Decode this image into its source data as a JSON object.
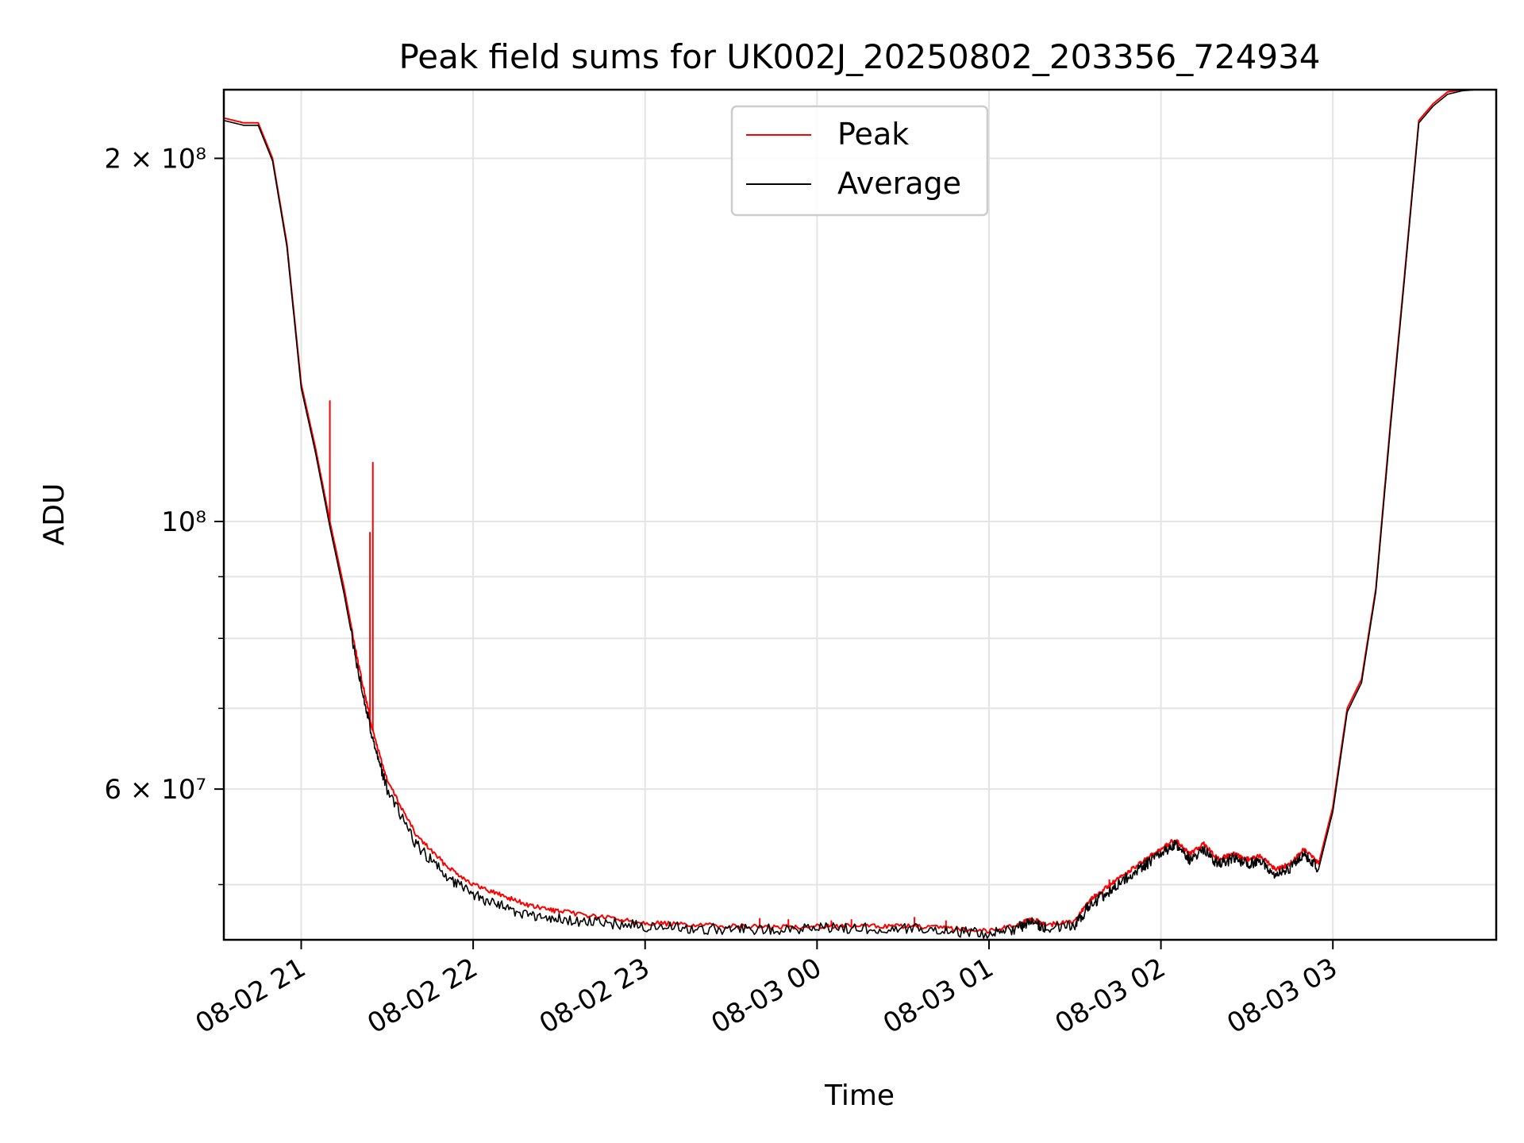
{
  "chart_data": {
    "type": "line",
    "title": "Peak field sums for UK002J_20250802_203356_724934",
    "xlabel": "Time",
    "ylabel": "ADU",
    "y_scale": "log",
    "xlim": [
      "2025-08-02 20:33",
      "2025-08-03 03:57"
    ],
    "ylim": [
      45000000,
      228000000
    ],
    "grid": true,
    "legend": "upper-center",
    "x_ticks": [
      {
        "label": "08-02 21",
        "value": "2025-08-02 21:00"
      },
      {
        "label": "08-02 22",
        "value": "2025-08-02 22:00"
      },
      {
        "label": "08-02 23",
        "value": "2025-08-02 23:00"
      },
      {
        "label": "08-03 00",
        "value": "2025-08-03 00:00"
      },
      {
        "label": "08-03 01",
        "value": "2025-08-03 01:00"
      },
      {
        "label": "08-03 02",
        "value": "2025-08-03 02:00"
      },
      {
        "label": "08-03 03",
        "value": "2025-08-03 03:00"
      }
    ],
    "y_ticks": [
      {
        "label": "2 × 10⁸",
        "value": 200000000
      },
      {
        "label": "10⁸",
        "value": 100000000
      },
      {
        "label": "6 × 10⁷",
        "value": 60000000
      }
    ],
    "y_minor_ticks": [
      50000000,
      70000000,
      80000000,
      90000000
    ],
    "series": [
      {
        "name": "Peak",
        "color": "#ff0000",
        "x": [
          "2025-08-02 20:33",
          "2025-08-02 20:40",
          "2025-08-02 20:45",
          "2025-08-02 20:50",
          "2025-08-02 20:55",
          "2025-08-02 21:00",
          "2025-08-02 21:05",
          "2025-08-02 21:10",
          "2025-08-02 21:15",
          "2025-08-02 21:20",
          "2025-08-02 21:25",
          "2025-08-02 21:30",
          "2025-08-02 21:40",
          "2025-08-02 21:50",
          "2025-08-02 22:00",
          "2025-08-02 22:10",
          "2025-08-02 22:20",
          "2025-08-02 22:30",
          "2025-08-02 22:45",
          "2025-08-02 23:00",
          "2025-08-02 23:15",
          "2025-08-02 23:30",
          "2025-08-02 23:45",
          "2025-08-03 00:00",
          "2025-08-03 00:15",
          "2025-08-03 00:30",
          "2025-08-03 00:45",
          "2025-08-03 01:00",
          "2025-08-03 01:10",
          "2025-08-03 01:15",
          "2025-08-03 01:20",
          "2025-08-03 01:30",
          "2025-08-03 01:35",
          "2025-08-03 01:40",
          "2025-08-03 01:45",
          "2025-08-03 01:50",
          "2025-08-03 01:55",
          "2025-08-03 02:00",
          "2025-08-03 02:05",
          "2025-08-03 02:10",
          "2025-08-03 02:15",
          "2025-08-03 02:20",
          "2025-08-03 02:25",
          "2025-08-03 02:30",
          "2025-08-03 02:35",
          "2025-08-03 02:40",
          "2025-08-03 02:45",
          "2025-08-03 02:50",
          "2025-08-03 02:55",
          "2025-08-03 03:00",
          "2025-08-03 03:05",
          "2025-08-03 03:10",
          "2025-08-03 03:15",
          "2025-08-03 03:20",
          "2025-08-03 03:25",
          "2025-08-03 03:30",
          "2025-08-03 03:35",
          "2025-08-03 03:40",
          "2025-08-03 03:45",
          "2025-08-03 03:50",
          "2025-08-03 03:57"
        ],
        "values": [
          216000000,
          214000000,
          214000000,
          200000000,
          170000000,
          130000000,
          115000000,
          100000000,
          88000000,
          76000000,
          67000000,
          61000000,
          55000000,
          52000000,
          50000000,
          49000000,
          48000000,
          47500000,
          47000000,
          46500000,
          46300000,
          46200000,
          46100000,
          46200000,
          46200000,
          46200000,
          46000000,
          45800000,
          46300000,
          46800000,
          46300000,
          46600000,
          48500000,
          49500000,
          50500000,
          51500000,
          52500000,
          53500000,
          54500000,
          53000000,
          54000000,
          52500000,
          53000000,
          52500000,
          52800000,
          51500000,
          52000000,
          53500000,
          52000000,
          58000000,
          70000000,
          74000000,
          88000000,
          120000000,
          160000000,
          215000000,
          222000000,
          227000000,
          228000000,
          228000000,
          228000000
        ],
        "spikes": [
          {
            "x": "2025-08-02 21:10",
            "value": 126000000
          },
          {
            "x": "2025-08-02 21:24",
            "value": 98000000
          },
          {
            "x": "2025-08-02 21:25",
            "value": 112000000
          },
          {
            "x": "2025-08-02 23:40",
            "value": 46900000
          },
          {
            "x": "2025-08-02 23:50",
            "value": 46800000
          },
          {
            "x": "2025-08-03 00:05",
            "value": 46700000
          },
          {
            "x": "2025-08-03 00:12",
            "value": 46800000
          },
          {
            "x": "2025-08-03 00:34",
            "value": 47000000
          },
          {
            "x": "2025-08-03 00:45",
            "value": 46700000
          },
          {
            "x": "2025-08-03 01:32",
            "value": 47300000
          },
          {
            "x": "2025-08-03 01:42",
            "value": 50500000
          },
          {
            "x": "2025-08-03 01:57",
            "value": 52600000
          }
        ]
      },
      {
        "name": "Average",
        "color": "#000000",
        "x": [
          "2025-08-02 20:33",
          "2025-08-02 20:40",
          "2025-08-02 20:45",
          "2025-08-02 20:50",
          "2025-08-02 20:55",
          "2025-08-02 21:00",
          "2025-08-02 21:05",
          "2025-08-02 21:10",
          "2025-08-02 21:15",
          "2025-08-02 21:20",
          "2025-08-02 21:25",
          "2025-08-02 21:30",
          "2025-08-02 21:40",
          "2025-08-02 21:50",
          "2025-08-02 22:00",
          "2025-08-02 22:10",
          "2025-08-02 22:20",
          "2025-08-02 22:30",
          "2025-08-02 22:45",
          "2025-08-02 23:00",
          "2025-08-02 23:15",
          "2025-08-02 23:30",
          "2025-08-02 23:45",
          "2025-08-03 00:00",
          "2025-08-03 00:15",
          "2025-08-03 00:30",
          "2025-08-03 00:45",
          "2025-08-03 01:00",
          "2025-08-03 01:10",
          "2025-08-03 01:15",
          "2025-08-03 01:20",
          "2025-08-03 01:30",
          "2025-08-03 01:35",
          "2025-08-03 01:40",
          "2025-08-03 01:45",
          "2025-08-03 01:50",
          "2025-08-03 01:55",
          "2025-08-03 02:00",
          "2025-08-03 02:05",
          "2025-08-03 02:10",
          "2025-08-03 02:15",
          "2025-08-03 02:20",
          "2025-08-03 02:25",
          "2025-08-03 02:30",
          "2025-08-03 02:35",
          "2025-08-03 02:40",
          "2025-08-03 02:45",
          "2025-08-03 02:50",
          "2025-08-03 02:55",
          "2025-08-03 03:00",
          "2025-08-03 03:05",
          "2025-08-03 03:10",
          "2025-08-03 03:15",
          "2025-08-03 03:20",
          "2025-08-03 03:25",
          "2025-08-03 03:30",
          "2025-08-03 03:35",
          "2025-08-03 03:40",
          "2025-08-03 03:45",
          "2025-08-03 03:50",
          "2025-08-03 03:57"
        ],
        "values": [
          215000000,
          213000000,
          213000000,
          199000000,
          169000000,
          129000000,
          114000000,
          99000000,
          87000000,
          75000000,
          66000000,
          60000000,
          54000000,
          51000000,
          49000000,
          48000000,
          47000000,
          46800000,
          46500000,
          46200000,
          46000000,
          45900000,
          45900000,
          46000000,
          46000000,
          46000000,
          45800000,
          45500000,
          46000000,
          46600000,
          46000000,
          46300000,
          48000000,
          49000000,
          50000000,
          51000000,
          52000000,
          53000000,
          54000000,
          52500000,
          53500000,
          52000000,
          52500000,
          52000000,
          52300000,
          51000000,
          51500000,
          53000000,
          51500000,
          57500000,
          69500000,
          73500000,
          87500000,
          119000000,
          159000000,
          214000000,
          221000000,
          226000000,
          227500000,
          228000000,
          228000000
        ]
      }
    ]
  }
}
